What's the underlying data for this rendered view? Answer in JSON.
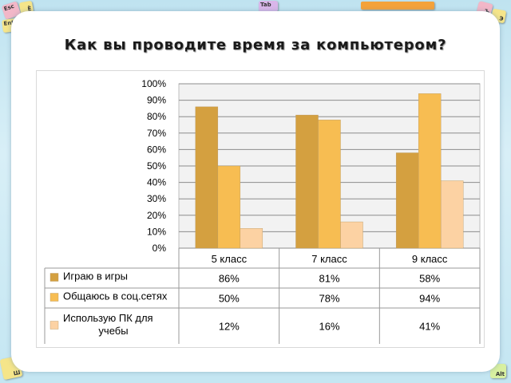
{
  "page": {
    "title": "Как вы проводите время за компьютером?"
  },
  "keys": [
    {
      "label": "Esc",
      "color": "#f2b7c8"
    },
    {
      "label": "Ё",
      "color": "#f5e58a"
    },
    {
      "label": "Enter",
      "color": "#f5e58a"
    },
    {
      "label": "Tab",
      "color": "#d9b6ea"
    },
    {
      "label": "Ъ",
      "color": "#f2b7c8"
    },
    {
      "label": "Э",
      "color": "#f5e58a"
    },
    {
      "label": "Ш",
      "color": "#f5e58a"
    },
    {
      "label": "Alt",
      "color": "#d8f0a0"
    }
  ],
  "chart_data": {
    "type": "bar",
    "categories": [
      "5 класс",
      "7 класс",
      "9 класс"
    ],
    "series": [
      {
        "name": "Играю в игры",
        "values": [
          86,
          81,
          58
        ],
        "labels": [
          "86%",
          "81%",
          "58%"
        ],
        "color": "#d4a040"
      },
      {
        "name": "Общаюсь в соц.сетях",
        "values": [
          50,
          78,
          94
        ],
        "labels": [
          "50%",
          "78%",
          "94%"
        ],
        "color": "#f7bd52"
      },
      {
        "name": "Использую ПК  для учебы",
        "values": [
          12,
          16,
          41
        ],
        "labels": [
          "12%",
          "16%",
          "41%"
        ],
        "color": "#fcd2a3"
      }
    ],
    "ylim": [
      0,
      100
    ],
    "yticks": [
      "0%",
      "10%",
      "20%",
      "30%",
      "40%",
      "50%",
      "60%",
      "70%",
      "80%",
      "90%",
      "100%"
    ],
    "grid": true,
    "legend": "data-table-below",
    "plot_background": "#f2f2f2"
  }
}
